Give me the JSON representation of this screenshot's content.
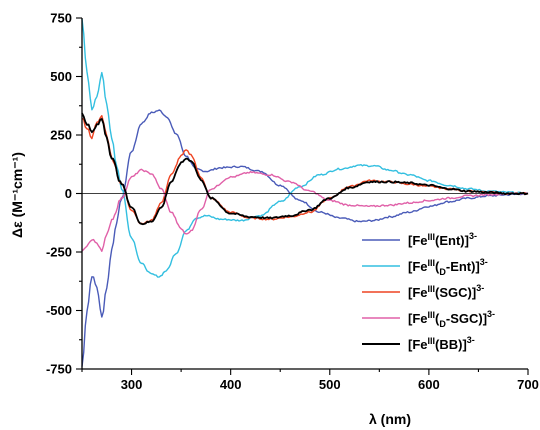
{
  "chart_data": {
    "type": "line",
    "xlabel": "λ (nm)",
    "ylabel": "Δε (M⁻¹cm⁻¹)",
    "xlim": [
      250,
      700
    ],
    "ylim": [
      -750,
      750
    ],
    "xticks": [
      300,
      400,
      500,
      600,
      700
    ],
    "yticks": [
      750,
      500,
      250,
      0,
      -250,
      -500,
      -750
    ],
    "grid": false,
    "legend_position": "bottom-right",
    "series": [
      {
        "name": "[Feᴵᴵᴵ(Ent)]³⁻",
        "legend": {
          "pre": "[Fe",
          "sup1": "III",
          "mid": "(Ent)]",
          "sub": "",
          "post": "",
          "sup2": "3-"
        },
        "color": "#4a5bb8",
        "x": [
          250,
          255,
          260,
          265,
          270,
          275,
          280,
          285,
          290,
          300,
          310,
          320,
          328,
          335,
          345,
          355,
          365,
          375,
          390,
          410,
          430,
          450,
          470,
          490,
          510,
          530,
          545,
          560,
          580,
          600,
          620,
          640,
          660,
          680,
          700
        ],
        "y": [
          -740,
          -500,
          -350,
          -400,
          -530,
          -400,
          -240,
          -120,
          -20,
          180,
          300,
          345,
          355,
          330,
          255,
          160,
          105,
          95,
          110,
          115,
          95,
          35,
          -30,
          -80,
          -105,
          -120,
          -115,
          -100,
          -80,
          -55,
          -35,
          -20,
          -10,
          -5,
          0
        ]
      },
      {
        "name": "[Feᴵᴵᴵ(D-Ent)]³⁻",
        "legend": {
          "pre": "[Fe",
          "sup1": "III",
          "mid": "(",
          "sub": "D",
          "post": "-Ent)]",
          "sup2": "3-"
        },
        "color": "#33bfe0",
        "x": [
          250,
          255,
          260,
          265,
          270,
          275,
          280,
          285,
          290,
          300,
          310,
          320,
          328,
          335,
          345,
          355,
          365,
          375,
          390,
          410,
          430,
          450,
          470,
          490,
          510,
          530,
          545,
          560,
          580,
          600,
          620,
          640,
          660,
          680,
          700
        ],
        "y": [
          740,
          520,
          360,
          420,
          510,
          380,
          240,
          120,
          20,
          -190,
          -300,
          -345,
          -355,
          -330,
          -255,
          -160,
          -105,
          -95,
          -110,
          -115,
          -95,
          -35,
          30,
          80,
          105,
          120,
          118,
          100,
          80,
          55,
          35,
          20,
          10,
          5,
          0
        ]
      },
      {
        "name": "[Feᴵᴵᴵ(SGC)]³⁻",
        "legend": {
          "pre": "[Fe",
          "sup1": "III",
          "mid": "(SGC)]",
          "sub": "",
          "post": "",
          "sup2": "3-"
        },
        "color": "#ee4422",
        "x": [
          250,
          255,
          260,
          265,
          270,
          275,
          280,
          290,
          300,
          310,
          320,
          330,
          340,
          350,
          355,
          360,
          370,
          380,
          400,
          420,
          440,
          460,
          480,
          500,
          520,
          540,
          560,
          580,
          600,
          620,
          640,
          660,
          680,
          700
        ],
        "y": [
          320,
          280,
          240,
          300,
          330,
          250,
          150,
          40,
          -70,
          -130,
          -115,
          -40,
          80,
          160,
          185,
          165,
          70,
          -20,
          -80,
          -105,
          -110,
          -100,
          -80,
          -20,
          30,
          55,
          50,
          40,
          30,
          20,
          10,
          5,
          0,
          0
        ]
      },
      {
        "name": "[Feᴵᴵᴵ(D-SGC)]³⁻",
        "legend": {
          "pre": "[Fe",
          "sup1": "III",
          "mid": "(",
          "sub": "D",
          "post": "-SGC)]",
          "sup2": "3-"
        },
        "color": "#e060a8",
        "x": [
          250,
          255,
          260,
          265,
          270,
          275,
          280,
          290,
          300,
          310,
          320,
          330,
          340,
          350,
          355,
          360,
          370,
          380,
          400,
          420,
          440,
          460,
          480,
          500,
          520,
          540,
          560,
          580,
          600,
          620,
          640,
          660,
          680,
          700
        ],
        "y": [
          -250,
          -220,
          -200,
          -210,
          -240,
          -180,
          -110,
          -20,
          70,
          100,
          85,
          20,
          -80,
          -150,
          -175,
          -160,
          -70,
          20,
          70,
          90,
          80,
          50,
          10,
          -30,
          -50,
          -55,
          -50,
          -40,
          -30,
          -20,
          -10,
          -5,
          0,
          0
        ]
      },
      {
        "name": "[Feᴵᴵᴵ(BB)]³⁻",
        "legend": {
          "pre": "[Fe",
          "sup1": "III",
          "mid": "(BB)]",
          "sub": "",
          "post": "",
          "sup2": "3-"
        },
        "color": "#000000",
        "x": [
          250,
          255,
          260,
          265,
          270,
          275,
          280,
          290,
          300,
          310,
          320,
          330,
          340,
          350,
          355,
          360,
          370,
          380,
          400,
          420,
          440,
          460,
          480,
          500,
          520,
          540,
          560,
          580,
          600,
          620,
          640,
          660,
          680,
          700
        ],
        "y": [
          340,
          300,
          260,
          290,
          320,
          240,
          150,
          40,
          -60,
          -130,
          -120,
          -60,
          50,
          130,
          150,
          140,
          60,
          -20,
          -85,
          -100,
          -105,
          -95,
          -70,
          -20,
          25,
          50,
          50,
          45,
          35,
          20,
          10,
          5,
          0,
          0
        ]
      }
    ]
  }
}
